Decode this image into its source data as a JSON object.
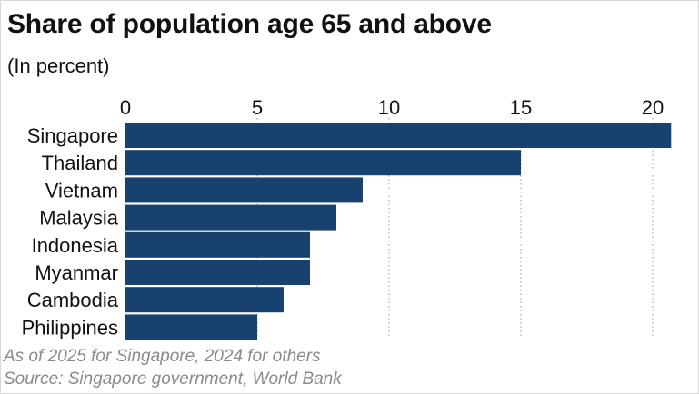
{
  "title": "Share of population age 65 and above",
  "subtitle": "(In percent)",
  "footnotes": {
    "note": "As of 2025 for Singapore, 2024 for others",
    "source": "Source: Singapore government, World Bank"
  },
  "colors": {
    "bar": "#17426f",
    "grid": "#9a9a9a",
    "text": "#111111"
  },
  "chart_data": {
    "type": "bar",
    "orientation": "horizontal",
    "title": "Share of population age 65 and above",
    "subtitle": "(In percent)",
    "categories": [
      "Singapore",
      "Thailand",
      "Vietnam",
      "Malaysia",
      "Indonesia",
      "Myanmar",
      "Cambodia",
      "Philippines"
    ],
    "values": [
      20.7,
      15.0,
      9.0,
      8.0,
      7.0,
      7.0,
      6.0,
      5.0
    ],
    "xlim": [
      0,
      21
    ],
    "xticks": [
      0,
      5,
      10,
      15,
      20
    ],
    "xlabel": "",
    "ylabel": "",
    "grid": "vertical dotted",
    "legend": "none"
  }
}
